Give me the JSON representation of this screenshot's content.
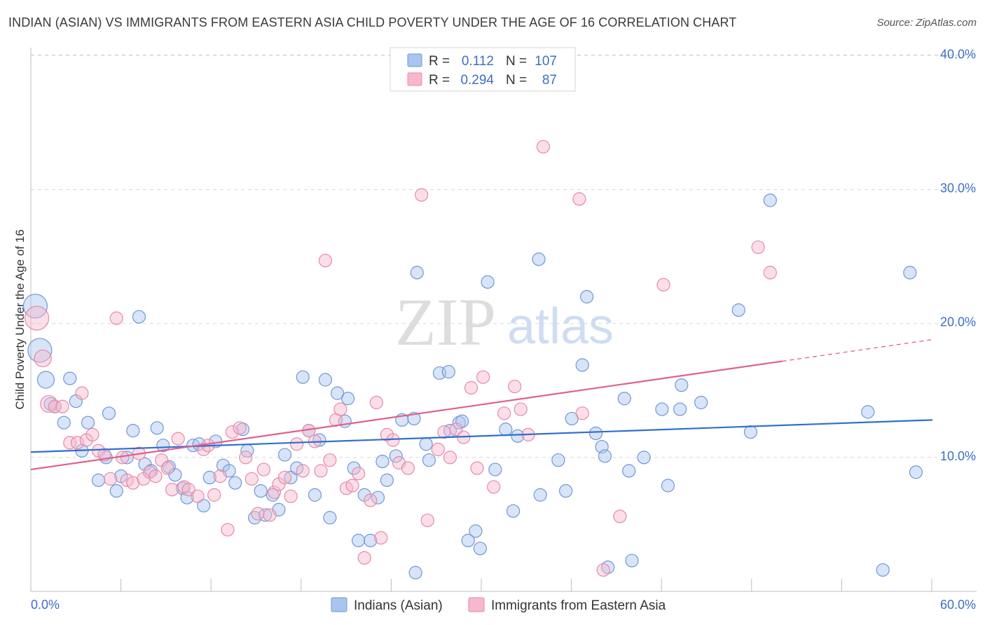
{
  "title": "INDIAN (ASIAN) VS IMMIGRANTS FROM EASTERN ASIA CHILD POVERTY UNDER THE AGE OF 16 CORRELATION CHART",
  "source": "Source: ZipAtlas.com",
  "watermark": {
    "zip": "ZIP",
    "atlas": "atlas"
  },
  "colors": {
    "blue_fill": "#a9c4ee",
    "blue_stroke": "#6f98d8",
    "blue_line": "#2f6fd0",
    "pink_fill": "#f6b8cb",
    "pink_stroke": "#e889a7",
    "pink_line": "#e0608e",
    "axis_text": "#3d6fc6",
    "grid": "#d8d8d8"
  },
  "legend": {
    "rows": [
      {
        "r_label": "R =",
        "r_value": "0.112",
        "n_label": "N =",
        "n_value": "107"
      },
      {
        "r_label": "R =",
        "r_value": "0.294",
        "n_label": "N =",
        "n_value": "87"
      }
    ]
  },
  "chart_data": {
    "type": "scatter",
    "title": "INDIAN (ASIAN) VS IMMIGRANTS FROM EASTERN ASIA CHILD POVERTY UNDER THE AGE OF 16 CORRELATION CHART",
    "xlabel": "",
    "ylabel": "Child Poverty Under the Age of 16",
    "xlim": [
      0,
      60
    ],
    "ylim": [
      0,
      40.6
    ],
    "x_tick_labels": [
      "0.0%",
      "60.0%"
    ],
    "y_ticks": [
      10,
      20,
      30,
      40
    ],
    "y_tick_labels": [
      "10.0%",
      "20.0%",
      "30.0%",
      "40.0%"
    ],
    "grid": true,
    "legend_position": "top-center",
    "series": [
      {
        "name": "Indians (Asian)",
        "color": "blue",
        "r": 0.112,
        "n": 107,
        "trend": {
          "x0": 0,
          "y0": 10.4,
          "x1": 60,
          "y1": 12.8
        },
        "points": [
          [
            0.3,
            21.3,
            3
          ],
          [
            0.6,
            18.0,
            3
          ],
          [
            1.0,
            15.8,
            2
          ],
          [
            1.3,
            14.0,
            1
          ],
          [
            1.6,
            13.8,
            1
          ],
          [
            2.2,
            12.6,
            1
          ],
          [
            2.6,
            15.9,
            1
          ],
          [
            3.0,
            14.2,
            1
          ],
          [
            3.4,
            10.5,
            1
          ],
          [
            3.8,
            12.6,
            1
          ],
          [
            4.5,
            8.3,
            1
          ],
          [
            5.0,
            10.0,
            1
          ],
          [
            5.2,
            13.3,
            1
          ],
          [
            5.7,
            7.5,
            1
          ],
          [
            6.0,
            8.6,
            1
          ],
          [
            6.4,
            10.0,
            1
          ],
          [
            6.8,
            12.0,
            1
          ],
          [
            7.2,
            20.5,
            1
          ],
          [
            7.6,
            9.5,
            1
          ],
          [
            8.0,
            9.0,
            1
          ],
          [
            8.4,
            12.2,
            1
          ],
          [
            8.8,
            10.9,
            1
          ],
          [
            9.2,
            9.3,
            1
          ],
          [
            9.6,
            8.7,
            1
          ],
          [
            10.1,
            7.7,
            1
          ],
          [
            10.4,
            7.0,
            1
          ],
          [
            10.8,
            10.9,
            1
          ],
          [
            11.2,
            11.0,
            1
          ],
          [
            11.5,
            6.4,
            1
          ],
          [
            11.9,
            8.5,
            1
          ],
          [
            12.3,
            11.2,
            1
          ],
          [
            12.8,
            9.4,
            1
          ],
          [
            13.2,
            9.0,
            1
          ],
          [
            13.6,
            8.1,
            1
          ],
          [
            14.1,
            12.1,
            1
          ],
          [
            14.4,
            10.5,
            1
          ],
          [
            14.9,
            5.5,
            1
          ],
          [
            15.3,
            7.5,
            1
          ],
          [
            15.6,
            5.7,
            1
          ],
          [
            16.1,
            7.2,
            1
          ],
          [
            16.5,
            6.1,
            1
          ],
          [
            16.9,
            10.2,
            1
          ],
          [
            17.3,
            8.5,
            1
          ],
          [
            17.7,
            9.2,
            1
          ],
          [
            18.1,
            16.0,
            1
          ],
          [
            18.5,
            12.0,
            1
          ],
          [
            18.9,
            7.2,
            1
          ],
          [
            19.2,
            11.3,
            1
          ],
          [
            19.6,
            15.8,
            1
          ],
          [
            19.9,
            5.5,
            1
          ],
          [
            20.4,
            14.8,
            1
          ],
          [
            20.9,
            12.7,
            1
          ],
          [
            21.1,
            14.4,
            1
          ],
          [
            21.5,
            9.2,
            1
          ],
          [
            21.8,
            3.8,
            1
          ],
          [
            22.2,
            7.2,
            1
          ],
          [
            22.6,
            3.8,
            1
          ],
          [
            23.1,
            7.0,
            1
          ],
          [
            23.4,
            9.7,
            1
          ],
          [
            23.7,
            8.3,
            1
          ],
          [
            24.3,
            10.1,
            1
          ],
          [
            24.7,
            12.8,
            1
          ],
          [
            25.7,
            23.8,
            1
          ],
          [
            25.6,
            1.4,
            1
          ],
          [
            26.5,
            9.8,
            1
          ],
          [
            26.3,
            11.0,
            1
          ],
          [
            27.2,
            16.3,
            1
          ],
          [
            27.8,
            16.4,
            1
          ],
          [
            27.9,
            12.0,
            1
          ],
          [
            28.5,
            12.6,
            1
          ],
          [
            28.7,
            12.7,
            1
          ],
          [
            29.1,
            3.8,
            1
          ],
          [
            29.6,
            4.5,
            1
          ],
          [
            29.9,
            3.2,
            1
          ],
          [
            30.4,
            23.1,
            1
          ],
          [
            30.9,
            9.1,
            1
          ],
          [
            31.6,
            12.1,
            1
          ],
          [
            32.1,
            6.0,
            1
          ],
          [
            32.4,
            11.6,
            1
          ],
          [
            33.8,
            24.8,
            1
          ],
          [
            33.9,
            7.2,
            1
          ],
          [
            35.1,
            9.8,
            1
          ],
          [
            35.6,
            7.5,
            1
          ],
          [
            36.0,
            12.9,
            1
          ],
          [
            36.7,
            16.9,
            1
          ],
          [
            37.0,
            22.0,
            1
          ],
          [
            37.6,
            11.8,
            1
          ],
          [
            38.0,
            10.8,
            1
          ],
          [
            38.2,
            10.1,
            1
          ],
          [
            38.4,
            1.8,
            1
          ],
          [
            39.5,
            14.4,
            1
          ],
          [
            39.8,
            9.0,
            1
          ],
          [
            40.0,
            2.3,
            1
          ],
          [
            40.8,
            10.0,
            1
          ],
          [
            42.0,
            13.6,
            1
          ],
          [
            42.4,
            7.9,
            1
          ],
          [
            43.2,
            13.6,
            1
          ],
          [
            43.3,
            15.4,
            1
          ],
          [
            44.6,
            14.1,
            1
          ],
          [
            47.1,
            21.0,
            1
          ],
          [
            47.9,
            11.9,
            1
          ],
          [
            49.2,
            29.2,
            1
          ],
          [
            55.7,
            13.4,
            1
          ],
          [
            56.7,
            1.6,
            1
          ],
          [
            58.5,
            23.8,
            1
          ],
          [
            58.9,
            8.9,
            1
          ],
          [
            25.5,
            12.9,
            1
          ]
        ]
      },
      {
        "name": "Immigrants from Eastern Asia",
        "color": "pink",
        "r": 0.294,
        "n": 87,
        "trend": {
          "x0": 0,
          "y0": 9.1,
          "x1": 60,
          "y1": 18.8
        },
        "trend_solid_until_x": 50,
        "points": [
          [
            0.4,
            20.4,
            3
          ],
          [
            0.8,
            17.4,
            2
          ],
          [
            1.2,
            14.0,
            2
          ],
          [
            1.6,
            13.8,
            1
          ],
          [
            2.1,
            13.8,
            1
          ],
          [
            2.6,
            11.1,
            1
          ],
          [
            3.1,
            11.1,
            1
          ],
          [
            3.4,
            14.8,
            1
          ],
          [
            3.7,
            11.3,
            1
          ],
          [
            4.1,
            11.7,
            1
          ],
          [
            4.5,
            10.5,
            1
          ],
          [
            4.9,
            10.2,
            1
          ],
          [
            5.3,
            8.4,
            1
          ],
          [
            5.7,
            20.4,
            1
          ],
          [
            6.1,
            10.0,
            1
          ],
          [
            6.4,
            8.3,
            1
          ],
          [
            6.8,
            8.1,
            1
          ],
          [
            7.2,
            10.3,
            1
          ],
          [
            7.5,
            8.4,
            1
          ],
          [
            7.9,
            8.9,
            1
          ],
          [
            8.3,
            8.6,
            1
          ],
          [
            8.7,
            9.8,
            1
          ],
          [
            9.1,
            9.2,
            1
          ],
          [
            9.4,
            7.6,
            1
          ],
          [
            9.8,
            11.4,
            1
          ],
          [
            10.2,
            7.8,
            1
          ],
          [
            10.5,
            7.6,
            1
          ],
          [
            11.1,
            7.1,
            1
          ],
          [
            11.5,
            10.6,
            1
          ],
          [
            11.8,
            10.9,
            1
          ],
          [
            12.2,
            7.2,
            1
          ],
          [
            12.6,
            8.6,
            1
          ],
          [
            13.1,
            4.6,
            1
          ],
          [
            13.4,
            11.9,
            1
          ],
          [
            13.9,
            12.2,
            1
          ],
          [
            14.3,
            10.0,
            1
          ],
          [
            14.7,
            8.4,
            1
          ],
          [
            15.1,
            5.8,
            1
          ],
          [
            15.5,
            9.1,
            1
          ],
          [
            15.9,
            5.7,
            1
          ],
          [
            16.2,
            7.4,
            1
          ],
          [
            16.5,
            8.0,
            1
          ],
          [
            16.9,
            8.5,
            1
          ],
          [
            17.3,
            7.1,
            1
          ],
          [
            17.7,
            11.0,
            1
          ],
          [
            18.1,
            9.0,
            1
          ],
          [
            18.5,
            12.0,
            1
          ],
          [
            18.9,
            11.2,
            1
          ],
          [
            19.3,
            9.0,
            1
          ],
          [
            19.6,
            24.7,
            1
          ],
          [
            19.9,
            9.8,
            1
          ],
          [
            20.3,
            12.8,
            1
          ],
          [
            20.6,
            13.6,
            1
          ],
          [
            21.0,
            7.7,
            1
          ],
          [
            21.4,
            7.9,
            1
          ],
          [
            21.8,
            8.8,
            1
          ],
          [
            22.2,
            2.5,
            1
          ],
          [
            22.6,
            6.8,
            1
          ],
          [
            23.0,
            14.1,
            1
          ],
          [
            23.3,
            4.0,
            1
          ],
          [
            23.7,
            11.7,
            1
          ],
          [
            24.1,
            11.3,
            1
          ],
          [
            24.5,
            9.6,
            1
          ],
          [
            25.1,
            9.2,
            1
          ],
          [
            26.0,
            29.6,
            1
          ],
          [
            26.4,
            5.3,
            1
          ],
          [
            27.1,
            10.6,
            1
          ],
          [
            27.5,
            11.9,
            1
          ],
          [
            27.9,
            10.0,
            1
          ],
          [
            28.3,
            12.1,
            1
          ],
          [
            28.8,
            11.5,
            1
          ],
          [
            29.3,
            15.2,
            1
          ],
          [
            29.7,
            9.2,
            1
          ],
          [
            30.1,
            16.0,
            1
          ],
          [
            30.8,
            7.8,
            1
          ],
          [
            31.5,
            13.3,
            1
          ],
          [
            32.2,
            15.3,
            1
          ],
          [
            32.6,
            13.6,
            1
          ],
          [
            33.1,
            11.7,
            1
          ],
          [
            34.1,
            33.2,
            1
          ],
          [
            36.5,
            29.3,
            1
          ],
          [
            36.7,
            13.3,
            1
          ],
          [
            38.1,
            1.6,
            1
          ],
          [
            39.2,
            5.6,
            1
          ],
          [
            42.1,
            22.9,
            1
          ],
          [
            48.4,
            25.7,
            1
          ],
          [
            49.2,
            23.8,
            1
          ]
        ]
      }
    ]
  },
  "bottom_legend": [
    {
      "label": "Indians (Asian)"
    },
    {
      "label": "Immigrants from Eastern Asia"
    }
  ]
}
